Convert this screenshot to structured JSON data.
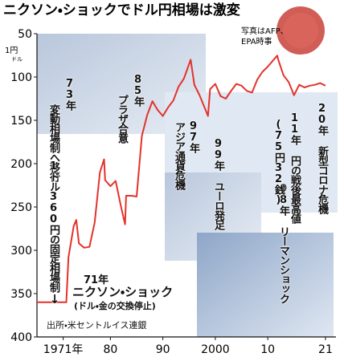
{
  "chart_data": {
    "type": "line",
    "title": "ニクソン・ショックでドル円相場は激変",
    "credit": [
      "写真はAFP、",
      "EPA時事"
    ],
    "y_label": [
      "1円",
      "ドル"
    ],
    "source": "出所・米セントルイス連銀",
    "annotations": [
      "73年",
      "変動相場制へ移行",
      "85年",
      "プラザ合意",
      "97年",
      "アジア通貨危機",
      "99年 ユーロ発足",
      "08年 リーマンショック",
      "11年 円の戦後最高値",
      "(75円32銭)",
      "20年 新型コロナ危機",
      "1ドル360円の固定相場制",
      "↓",
      "71年",
      "ニクソン・ショック",
      "(ドル・金の交換停止)"
    ],
    "color": "#e4322b",
    "x": [
      1966,
      1971.6,
      1972,
      1973,
      1973.5,
      1974,
      1975,
      1976,
      1977,
      1978,
      1978.8,
      1979,
      1980,
      1981,
      1982,
      1982.8,
      1983,
      1984,
      1985,
      1986,
      1987,
      1988,
      1989,
      1990,
      1991,
      1992,
      1993,
      1994,
      1995.3,
      1996,
      1997,
      1998.6,
      1999,
      2000,
      2001,
      2002,
      2003,
      2004,
      2005,
      2006,
      2007,
      2008,
      2009,
      2010,
      2011.8,
      2012,
      2013,
      2014,
      2015,
      2016,
      2017,
      2018,
      2019,
      2020,
      2021
    ],
    "values": [
      360,
      360,
      308,
      272,
      265,
      292,
      297,
      296,
      268,
      210,
      195,
      219,
      226,
      220,
      249,
      270,
      237,
      237,
      238,
      168,
      144,
      128,
      138,
      145,
      135,
      127,
      111,
      102,
      80,
      109,
      121,
      145,
      114,
      108,
      122,
      125,
      116,
      108,
      110,
      116,
      118,
      103,
      94,
      88,
      75.3,
      80,
      98,
      106,
      121,
      109,
      112,
      110,
      109,
      107,
      110
    ],
    "xlim": [
      1966,
      2023
    ],
    "ylim": [
      400,
      50
    ],
    "xticks": [
      {
        "value": 1971,
        "label": "1971年"
      },
      {
        "value": 1980,
        "label": "80"
      },
      {
        "value": 1990,
        "label": "90"
      },
      2000,
      {
        "value": 2010,
        "label": "10"
      },
      {
        "value": 2021,
        "label": "21"
      }
    ],
    "yticks": [
      50,
      100,
      150,
      200,
      250,
      300,
      350,
      400
    ]
  }
}
